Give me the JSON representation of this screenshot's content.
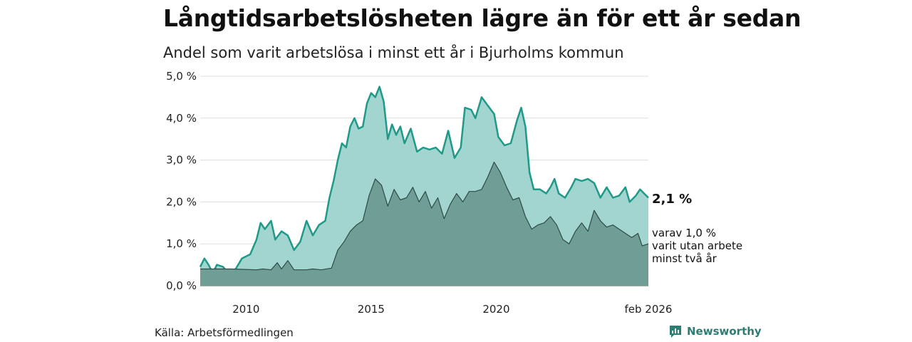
{
  "title": "Långtidsarbetslösheten lägre än för ett år sedan",
  "subtitle": "Andel som varit arbetslösa i minst ett år i Bjurholms kommun",
  "source": "Källa: Arbetsförmedlingen",
  "brand": "Newsworthy",
  "colors": {
    "main_line": "#1f9a88",
    "main_fill": "#a2d5cf",
    "sub_line": "#2f4a45",
    "sub_fill": "#6f9e97",
    "grid": "#dddddd"
  },
  "chart_data": {
    "type": "area",
    "title": "Långtidsarbetslösheten lägre än för ett år sedan",
    "subtitle": "Andel som varit arbetslösa i minst ett år i Bjurholms kommun",
    "ylim": [
      0,
      5
    ],
    "yticks": [
      0,
      1,
      2,
      3,
      4,
      5
    ],
    "ytick_labels": [
      "0,0 %",
      "1,0 %",
      "2,0 %",
      "3,0 %",
      "4,0 %",
      "5,0 %"
    ],
    "xlim": [
      "2008-03",
      "2026-02"
    ],
    "xticks": [
      "2010-01",
      "2015-01",
      "2020-01",
      "2026-02"
    ],
    "xtick_labels": [
      "2010",
      "2015",
      "2020",
      "feb 2026"
    ],
    "grid": "horizontal",
    "series": [
      {
        "name": "Arbetslösa i minst ett år",
        "end_label": "2,1 %",
        "points": [
          [
            "2008-03",
            0.45
          ],
          [
            "2008-05",
            0.65
          ],
          [
            "2008-07",
            0.5
          ],
          [
            "2008-09",
            0.3
          ],
          [
            "2008-11",
            0.5
          ],
          [
            "2009-02",
            0.45
          ],
          [
            "2009-05",
            0.25
          ],
          [
            "2009-08",
            0.4
          ],
          [
            "2009-11",
            0.65
          ],
          [
            "2010-03",
            0.75
          ],
          [
            "2010-06",
            1.1
          ],
          [
            "2010-08",
            1.5
          ],
          [
            "2010-10",
            1.35
          ],
          [
            "2011-01",
            1.55
          ],
          [
            "2011-03",
            1.1
          ],
          [
            "2011-06",
            1.3
          ],
          [
            "2011-09",
            1.2
          ],
          [
            "2011-12",
            0.85
          ],
          [
            "2012-03",
            1.05
          ],
          [
            "2012-06",
            1.55
          ],
          [
            "2012-09",
            1.2
          ],
          [
            "2012-12",
            1.45
          ],
          [
            "2013-03",
            1.55
          ],
          [
            "2013-05",
            2.1
          ],
          [
            "2013-07",
            2.5
          ],
          [
            "2013-09",
            3.0
          ],
          [
            "2013-11",
            3.4
          ],
          [
            "2014-01",
            3.3
          ],
          [
            "2014-03",
            3.8
          ],
          [
            "2014-05",
            4.0
          ],
          [
            "2014-07",
            3.75
          ],
          [
            "2014-09",
            3.8
          ],
          [
            "2014-11",
            4.35
          ],
          [
            "2015-01",
            4.6
          ],
          [
            "2015-03",
            4.5
          ],
          [
            "2015-05",
            4.75
          ],
          [
            "2015-07",
            4.4
          ],
          [
            "2015-09",
            3.5
          ],
          [
            "2015-11",
            3.85
          ],
          [
            "2016-01",
            3.6
          ],
          [
            "2016-03",
            3.8
          ],
          [
            "2016-05",
            3.4
          ],
          [
            "2016-08",
            3.75
          ],
          [
            "2016-11",
            3.2
          ],
          [
            "2017-02",
            3.3
          ],
          [
            "2017-05",
            3.25
          ],
          [
            "2017-08",
            3.3
          ],
          [
            "2017-11",
            3.15
          ],
          [
            "2018-02",
            3.7
          ],
          [
            "2018-05",
            3.05
          ],
          [
            "2018-08",
            3.3
          ],
          [
            "2018-10",
            4.25
          ],
          [
            "2019-01",
            4.2
          ],
          [
            "2019-03",
            4.0
          ],
          [
            "2019-06",
            4.5
          ],
          [
            "2019-09",
            4.3
          ],
          [
            "2019-12",
            4.1
          ],
          [
            "2020-02",
            3.55
          ],
          [
            "2020-05",
            3.35
          ],
          [
            "2020-08",
            3.4
          ],
          [
            "2020-11",
            3.95
          ],
          [
            "2021-01",
            4.25
          ],
          [
            "2021-03",
            3.8
          ],
          [
            "2021-05",
            2.7
          ],
          [
            "2021-07",
            2.3
          ],
          [
            "2021-10",
            2.3
          ],
          [
            "2022-01",
            2.2
          ],
          [
            "2022-03",
            2.35
          ],
          [
            "2022-05",
            2.55
          ],
          [
            "2022-07",
            2.2
          ],
          [
            "2022-10",
            2.1
          ],
          [
            "2023-01",
            2.35
          ],
          [
            "2023-03",
            2.55
          ],
          [
            "2023-06",
            2.5
          ],
          [
            "2023-09",
            2.55
          ],
          [
            "2023-12",
            2.45
          ],
          [
            "2024-03",
            2.1
          ],
          [
            "2024-06",
            2.35
          ],
          [
            "2024-09",
            2.1
          ],
          [
            "2024-12",
            2.15
          ],
          [
            "2025-03",
            2.35
          ],
          [
            "2025-05",
            2.0
          ],
          [
            "2025-08",
            2.15
          ],
          [
            "2025-10",
            2.3
          ],
          [
            "2025-12",
            2.2
          ],
          [
            "2026-02",
            2.1
          ]
        ]
      },
      {
        "name": "varit utan arbete minst två år",
        "end_label_lines": [
          "varav 1,0 %",
          "varit utan arbete",
          "minst två år"
        ],
        "points": [
          [
            "2008-03",
            0.4
          ],
          [
            "2009-06",
            0.4
          ],
          [
            "2010-06",
            0.38
          ],
          [
            "2010-09",
            0.4
          ],
          [
            "2011-01",
            0.38
          ],
          [
            "2011-04",
            0.55
          ],
          [
            "2011-06",
            0.4
          ],
          [
            "2011-09",
            0.6
          ],
          [
            "2011-12",
            0.38
          ],
          [
            "2012-06",
            0.38
          ],
          [
            "2012-09",
            0.4
          ],
          [
            "2013-01",
            0.38
          ],
          [
            "2013-06",
            0.42
          ],
          [
            "2013-09",
            0.85
          ],
          [
            "2013-12",
            1.05
          ],
          [
            "2014-03",
            1.3
          ],
          [
            "2014-06",
            1.45
          ],
          [
            "2014-09",
            1.55
          ],
          [
            "2014-12",
            2.15
          ],
          [
            "2015-03",
            2.55
          ],
          [
            "2015-06",
            2.4
          ],
          [
            "2015-09",
            1.9
          ],
          [
            "2015-12",
            2.3
          ],
          [
            "2016-03",
            2.05
          ],
          [
            "2016-06",
            2.1
          ],
          [
            "2016-09",
            2.35
          ],
          [
            "2016-12",
            2.0
          ],
          [
            "2017-03",
            2.25
          ],
          [
            "2017-06",
            1.85
          ],
          [
            "2017-09",
            2.1
          ],
          [
            "2017-12",
            1.6
          ],
          [
            "2018-03",
            1.95
          ],
          [
            "2018-06",
            2.2
          ],
          [
            "2018-09",
            2.0
          ],
          [
            "2018-12",
            2.25
          ],
          [
            "2019-03",
            2.25
          ],
          [
            "2019-06",
            2.3
          ],
          [
            "2019-09",
            2.6
          ],
          [
            "2019-12",
            2.95
          ],
          [
            "2020-03",
            2.7
          ],
          [
            "2020-06",
            2.35
          ],
          [
            "2020-09",
            2.05
          ],
          [
            "2020-12",
            2.1
          ],
          [
            "2021-03",
            1.65
          ],
          [
            "2021-06",
            1.35
          ],
          [
            "2021-09",
            1.45
          ],
          [
            "2021-12",
            1.5
          ],
          [
            "2022-03",
            1.65
          ],
          [
            "2022-06",
            1.45
          ],
          [
            "2022-09",
            1.1
          ],
          [
            "2022-12",
            1.0
          ],
          [
            "2023-03",
            1.3
          ],
          [
            "2023-06",
            1.5
          ],
          [
            "2023-09",
            1.3
          ],
          [
            "2023-12",
            1.8
          ],
          [
            "2024-03",
            1.55
          ],
          [
            "2024-06",
            1.4
          ],
          [
            "2024-09",
            1.45
          ],
          [
            "2024-12",
            1.35
          ],
          [
            "2025-03",
            1.25
          ],
          [
            "2025-06",
            1.15
          ],
          [
            "2025-09",
            1.25
          ],
          [
            "2025-11",
            0.95
          ],
          [
            "2026-02",
            1.0
          ]
        ]
      }
    ]
  }
}
